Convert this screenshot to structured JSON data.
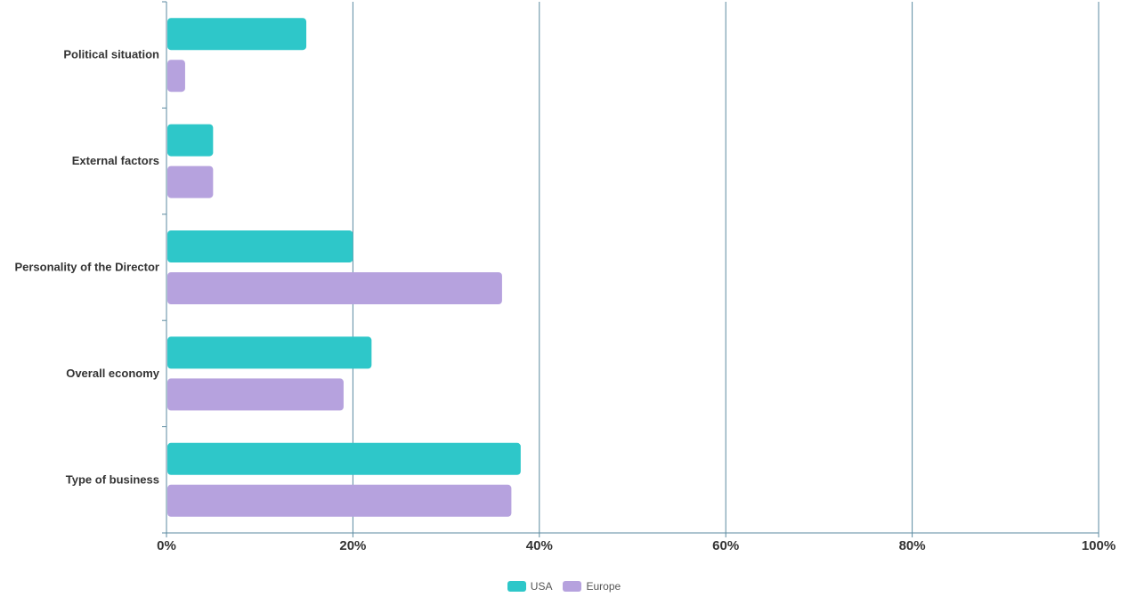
{
  "chart_data": {
    "type": "bar",
    "orientation": "horizontal",
    "categories": [
      "Political situation",
      "External factors",
      "Personality of the Director",
      "Overall economy",
      "Type of business"
    ],
    "series": [
      {
        "name": "USA",
        "color": "#2ec7c9",
        "values": [
          15,
          5,
          20,
          22,
          38
        ]
      },
      {
        "name": "Europe",
        "color": "#b6a2de",
        "values": [
          2,
          5,
          36,
          19,
          37
        ]
      }
    ],
    "xlim": [
      0,
      100
    ],
    "x_ticks": [
      "0%",
      "20%",
      "40%",
      "60%",
      "80%",
      "100%"
    ],
    "x_tick_values": [
      0,
      20,
      40,
      60,
      80,
      100
    ],
    "grid": "vertical",
    "axis_color": "#5b8aa0",
    "legend_position": "bottom-center",
    "title": "",
    "xlabel": "",
    "ylabel": ""
  }
}
